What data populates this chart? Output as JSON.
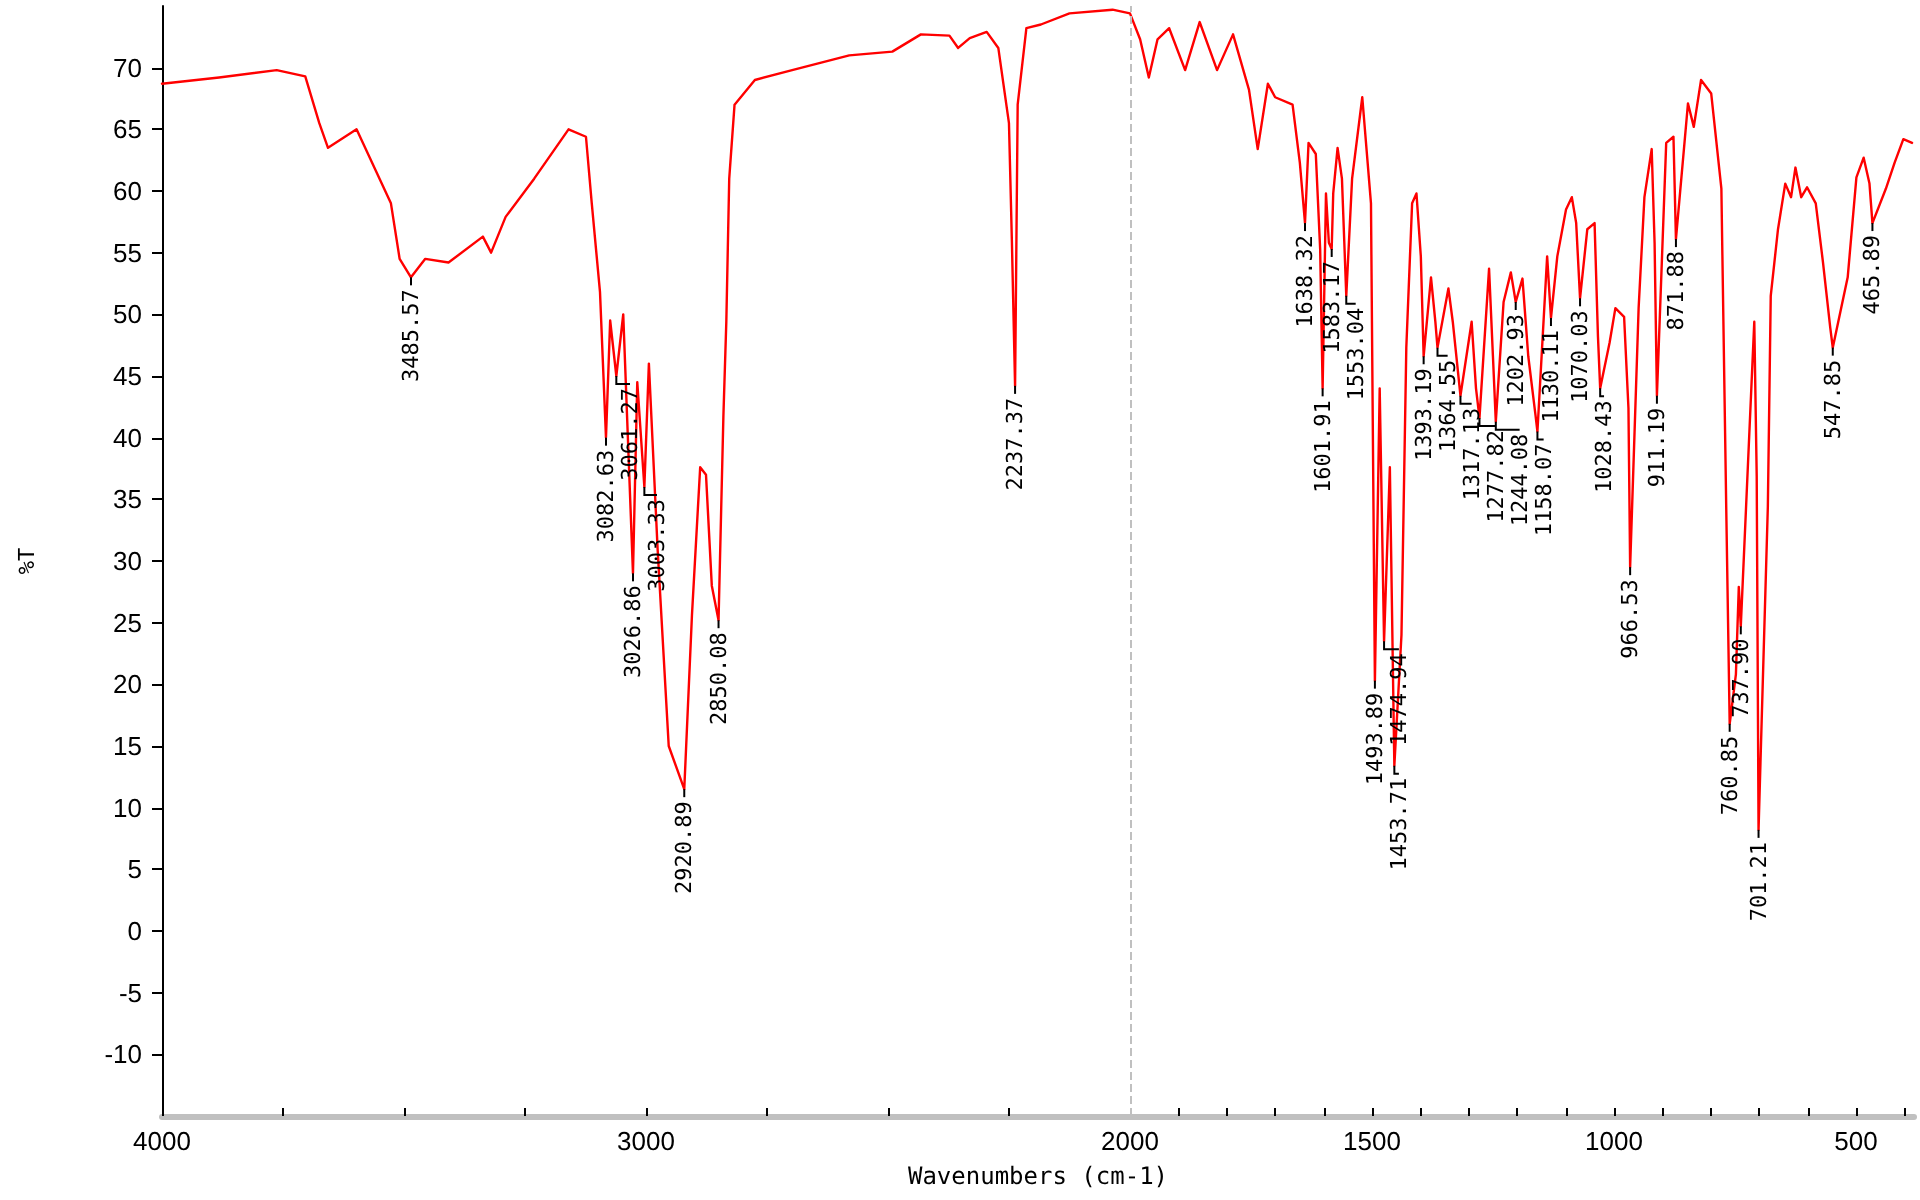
{
  "chart_data": {
    "type": "line",
    "xlabel": "Wavenumbers (cm-1)",
    "ylabel": "%T",
    "xlim": [
      4000,
      380
    ],
    "ylim": [
      -15,
      75
    ],
    "xticks": [
      4000,
      {
        "value": 3750,
        "label": null
      },
      {
        "value": 3500,
        "label": null
      },
      {
        "value": 3250,
        "label": null
      },
      3000,
      {
        "value": 2750,
        "label": null
      },
      {
        "value": 2500,
        "label": null
      },
      {
        "value": 2250,
        "label": null
      },
      2000,
      {
        "value": 1900,
        "label": null
      },
      {
        "value": 1800,
        "label": null
      },
      {
        "value": 1700,
        "label": null
      },
      {
        "value": 1600,
        "label": null
      },
      1500,
      {
        "value": 1400,
        "label": null
      },
      {
        "value": 1300,
        "label": null
      },
      {
        "value": 1200,
        "label": null
      },
      {
        "value": 1100,
        "label": null
      },
      1000,
      {
        "value": 900,
        "label": null
      },
      {
        "value": 800,
        "label": null
      },
      {
        "value": 700,
        "label": null
      },
      {
        "value": 600,
        "label": null
      },
      500,
      {
        "value": 400,
        "label": null
      }
    ],
    "yticks": [
      -10,
      -5,
      0,
      5,
      10,
      15,
      20,
      25,
      30,
      35,
      40,
      45,
      50,
      55,
      60,
      65,
      70
    ],
    "marker": "none",
    "ref_lines": [
      {
        "axis": "x",
        "value": 2000,
        "label": null,
        "color": "#c0c0c0",
        "line_style": "dashed"
      }
    ],
    "series": [
      {
        "color": "#ff0000",
        "x": [
          4000,
          3882,
          3763,
          3704,
          3675,
          3657,
          3598,
          3527,
          3509,
          3485.57,
          3456,
          3408,
          3337,
          3320,
          3290,
          3231,
          3160,
          3124,
          3112,
          3095,
          3082.63,
          3074,
          3061.27,
          3047,
          3026.86,
          3018,
          3003.33,
          2994,
          2976,
          2953,
          2920.89,
          2905,
          2888,
          2876,
          2864,
          2850.08,
          2840,
          2834,
          2828,
          2817,
          2775,
          2698,
          2580,
          2491,
          2432,
          2373,
          2355,
          2331,
          2296,
          2272,
          2250,
          2244,
          2237.37,
          2232,
          2214,
          2184,
          2125,
          2036,
          2000,
          1979,
          1961,
          1943,
          1919,
          1886,
          1856,
          1820,
          1787,
          1754,
          1736,
          1715,
          1700,
          1664,
          1649,
          1638.32,
          1631,
          1616,
          1607,
          1601.91,
          1595,
          1589,
          1583.17,
          1580,
          1571,
          1562,
          1553.04,
          1541,
          1520,
          1502,
          1493.89,
          1484,
          1474.94,
          1463,
          1453.71,
          1439,
          1429,
          1417,
          1408,
          1399,
          1393.19,
          1378,
          1369,
          1364.55,
          1342,
          1333,
          1317.13,
          1294,
          1285,
          1277.82,
          1258,
          1250,
          1244.08,
          1228,
          1213,
          1202.93,
          1189,
          1177,
          1162,
          1158.07,
          1138,
          1130.11,
          1117,
          1099,
          1087,
          1078,
          1070.03,
          1055,
          1040,
          1033,
          1028.43,
          1009,
          997,
          979,
          970,
          966.53,
          949,
          937,
          922,
          916,
          911.19,
          892,
          877,
          871.88,
          847,
          835,
          820,
          799,
          778,
          768,
          760.85,
          748,
          742,
          737.9,
          715,
          710,
          705,
          701.21,
          682,
          676,
          661,
          646,
          634,
          625,
          613,
          601,
          583,
          568,
          553,
          547.85,
          517,
          499,
          484,
          472,
          465.89,
          438,
          420,
          402,
          384
        ],
        "values": [
          68.7,
          69.2,
          69.8,
          69.3,
          65.5,
          63.5,
          65,
          59,
          54.5,
          53,
          54.5,
          54.2,
          56.3,
          55,
          57.9,
          61,
          65,
          64.4,
          59,
          51.8,
          40,
          49.5,
          45,
          50,
          29,
          44.5,
          36,
          46,
          31,
          15,
          11.5,
          25.6,
          37.6,
          37,
          28,
          25.2,
          41.8,
          49.4,
          61,
          67,
          69,
          69.8,
          71,
          71.3,
          72.7,
          72.6,
          71.6,
          72.4,
          72.9,
          71.6,
          65.5,
          56,
          44.2,
          67,
          73.2,
          73.5,
          74.4,
          74.7,
          74.4,
          72.3,
          69.2,
          72.3,
          73.2,
          69.8,
          73.7,
          69.8,
          72.7,
          68.2,
          63.4,
          68.7,
          67.6,
          67,
          62.3,
          57.4,
          63.9,
          63,
          55.3,
          44,
          59.8,
          55.8,
          55.3,
          59.8,
          63.5,
          61,
          51.5,
          61,
          67.6,
          59,
          20.3,
          44,
          23.5,
          37.6,
          13.4,
          24,
          47.3,
          59,
          59.8,
          54.7,
          46.6,
          53,
          49.4,
          47.3,
          52.1,
          49.4,
          43.4,
          49.4,
          44,
          41.6,
          53.7,
          46.6,
          41.3,
          51,
          53.4,
          51,
          52.9,
          46.6,
          41.8,
          40.5,
          54.7,
          49.7,
          54.7,
          58.5,
          59.5,
          57.4,
          51.3,
          56.9,
          57.4,
          48.2,
          44,
          47.7,
          50.5,
          49.8,
          42.4,
          29.5,
          50.5,
          59.5,
          63.4,
          55.8,
          43.4,
          63.9,
          64.4,
          56.1,
          67.1,
          65.2,
          69,
          67.9,
          60.2,
          34.4,
          16.8,
          20.8,
          27.9,
          24.7,
          45,
          49.4,
          36.9,
          8.2,
          34.4,
          51.5,
          56.9,
          60.6,
          59.5,
          61.9,
          59.5,
          60.3,
          59,
          54.2,
          48.9,
          47.3,
          53,
          61.1,
          62.7,
          60.6,
          57.4,
          60.2,
          62.3,
          64.2,
          63.9
        ]
      }
    ],
    "annotations": [
      {
        "text": "3485.57",
        "x": 3485.57,
        "y": 53
      },
      {
        "text": "3082.63",
        "x": 3082.63,
        "y": 40
      },
      {
        "text": "3061.27",
        "x": 3061.27,
        "y": 45
      },
      {
        "text": "3026.86",
        "x": 3026.86,
        "y": 29
      },
      {
        "text": "3003.33",
        "x": 3003.33,
        "y": 36
      },
      {
        "text": "2920.89",
        "x": 2920.89,
        "y": 11.5
      },
      {
        "text": "2850.08",
        "x": 2850.08,
        "y": 25.2
      },
      {
        "text": "2237.37",
        "x": 2237.37,
        "y": 44.2
      },
      {
        "text": "1638.32",
        "x": 1638.32,
        "y": 57.4
      },
      {
        "text": "1601.91",
        "x": 1601.91,
        "y": 44
      },
      {
        "text": "1583.17",
        "x": 1583.17,
        "y": 55.3
      },
      {
        "text": "1553.04",
        "x": 1553.04,
        "y": 51.5
      },
      {
        "text": "1493.89",
        "x": 1493.89,
        "y": 20.3
      },
      {
        "text": "1474.94",
        "x": 1474.94,
        "y": 23.5
      },
      {
        "text": "1453.71",
        "x": 1453.71,
        "y": 13.4
      },
      {
        "text": "1393.19",
        "x": 1393.19,
        "y": 46.6
      },
      {
        "text": "1364.55",
        "x": 1364.55,
        "y": 47.3
      },
      {
        "text": "1317.13",
        "x": 1317.13,
        "y": 43.4
      },
      {
        "text": "1277.82",
        "x": 1277.82,
        "y": 41.6
      },
      {
        "text": "1244.08",
        "x": 1244.08,
        "y": 41.3
      },
      {
        "text": "1202.93",
        "x": 1202.93,
        "y": 51
      },
      {
        "text": "1158.07",
        "x": 1158.07,
        "y": 40.5
      },
      {
        "text": "1130.11",
        "x": 1130.11,
        "y": 49.7
      },
      {
        "text": "1070.03",
        "x": 1070.03,
        "y": 51.3
      },
      {
        "text": "1028.43",
        "x": 1028.43,
        "y": 44
      },
      {
        "text": "966.53",
        "x": 966.53,
        "y": 29.5
      },
      {
        "text": "911.19",
        "x": 911.19,
        "y": 43.4
      },
      {
        "text": "871.88",
        "x": 871.88,
        "y": 56.1
      },
      {
        "text": "760.85",
        "x": 760.85,
        "y": 16.8
      },
      {
        "text": "737.90",
        "x": 737.9,
        "y": 24.7
      },
      {
        "text": "701.21",
        "x": 701.21,
        "y": 8.2
      },
      {
        "text": "547.85",
        "x": 547.85,
        "y": 47.3
      },
      {
        "text": "465.89",
        "x": 465.89,
        "y": 57.4
      }
    ]
  }
}
